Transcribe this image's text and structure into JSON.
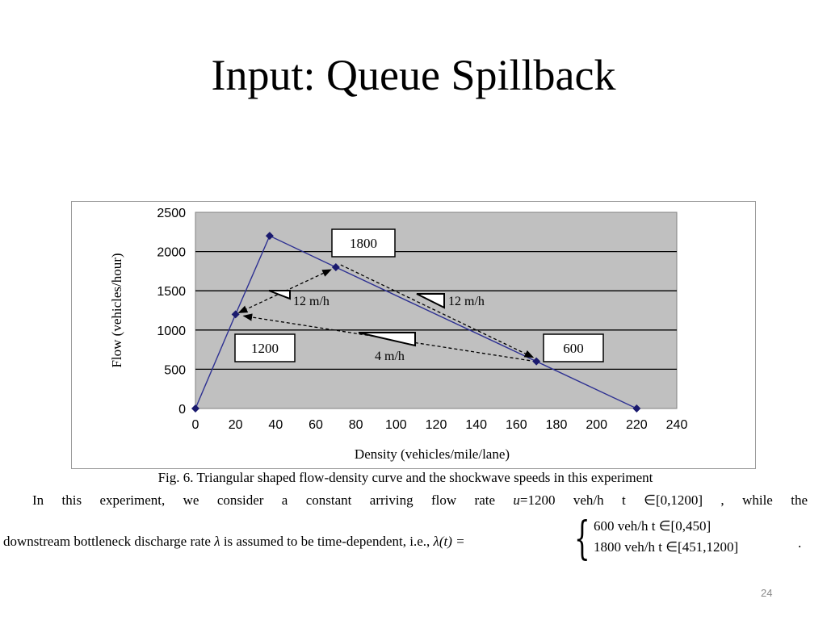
{
  "slide": {
    "title": "Input: Queue Spillback",
    "page_number": "24"
  },
  "figure": {
    "caption": "Fig. 6. Triangular shaped flow-density curve and the shockwave speeds in this experiment",
    "para1_parts": [
      "In this experiment, we consider a constant arriving flow rate",
      "u",
      "=1200 veh/h t ∈[0,1200] , while the"
    ],
    "para2_prefix": "downstream bottleneck discharge rate",
    "para2_lambda": "λ",
    "para2_mid": "is assumed to be time-dependent, i.e.,",
    "para2_func": "λ(t) =",
    "case1": "600 veh/h t ∈[0,450]",
    "case2": "1800 veh/h t ∈[451,1200]",
    "period": "."
  },
  "chart_data": {
    "type": "line",
    "xlabel": "Density (vehicles/mile/lane)",
    "ylabel": "Flow (vehicles/hour)",
    "xlim": [
      0,
      240
    ],
    "ylim": [
      0,
      2500
    ],
    "xticks": [
      0,
      20,
      40,
      60,
      80,
      100,
      120,
      140,
      160,
      180,
      200,
      220,
      240
    ],
    "yticks": [
      0,
      500,
      1000,
      1500,
      2000,
      2500
    ],
    "grid": "horizontal",
    "plot_background": "#c0c0c0",
    "series": [
      {
        "color": "#2e3192",
        "points": [
          [
            0,
            0
          ],
          [
            20,
            1200
          ],
          [
            37,
            2200
          ],
          [
            70,
            1800
          ],
          [
            170,
            600
          ],
          [
            220,
            0
          ]
        ]
      }
    ],
    "shockwaves": [
      {
        "from": [
          20,
          1200
        ],
        "to": [
          70,
          1800
        ],
        "label": "12 m/h"
      },
      {
        "from": [
          70,
          1800
        ],
        "to": [
          170,
          600
        ],
        "label": "12 m/h"
      },
      {
        "from": [
          170,
          600
        ],
        "to": [
          20,
          1200
        ],
        "label": "4  m/h"
      }
    ],
    "boxes": [
      {
        "text": "1800",
        "anchor": "above-right of (70,1800)"
      },
      {
        "text": "1200",
        "anchor": "below of (20,1200)"
      },
      {
        "text": "600",
        "anchor": "above-right of (170,600)"
      }
    ]
  }
}
